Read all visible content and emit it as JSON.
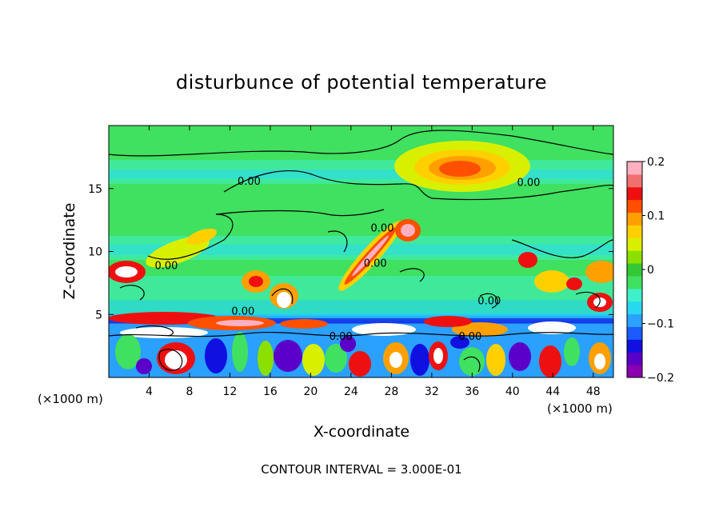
{
  "chart_data": {
    "type": "heatmap",
    "title": "disturbunce of potential temperature",
    "xlabel": "X-coordinate",
    "ylabel": "Z-coordinate",
    "x_unit_left": "(×1000 m)",
    "x_unit_right": "(×1000 m)",
    "footer": "CONTOUR INTERVAL = 3.000E-01",
    "xlim": [
      0,
      50
    ],
    "ylim": [
      0,
      20
    ],
    "x_ticks": [
      4,
      8,
      12,
      16,
      20,
      24,
      28,
      32,
      36,
      40,
      44,
      48
    ],
    "y_ticks": [
      5,
      10,
      15
    ],
    "colorbar": {
      "range": [
        -0.2,
        0.2
      ],
      "tick_values": [
        0.2,
        0.1,
        0,
        -0.1,
        -0.2
      ],
      "tick_labels": [
        "0.2",
        "0.1",
        "0",
        "−0.1",
        "−0.2"
      ],
      "colors": [
        "#8b00b0",
        "#5a00c8",
        "#1010e0",
        "#1a5cff",
        "#2aa0ff",
        "#28d8f0",
        "#40f0c8",
        "#40e060",
        "#34c834",
        "#8ce000",
        "#d8f000",
        "#ffd000",
        "#ffa000",
        "#ff5000",
        "#ee1010",
        "#f07070",
        "#ffb0c0"
      ]
    },
    "contour_labels": [
      {
        "text": "0.00",
        "x": 13.9,
        "z": 15.3
      },
      {
        "text": "0.00",
        "x": 5.7,
        "z": 8.6
      },
      {
        "text": "0.00",
        "x": 27.1,
        "z": 11.6
      },
      {
        "text": "0.00",
        "x": 26.4,
        "z": 8.8
      },
      {
        "text": "0.00",
        "x": 41.6,
        "z": 15.2
      },
      {
        "text": "0.00",
        "x": 13.3,
        "z": 5.0
      },
      {
        "text": "0.00",
        "x": 23.0,
        "z": 3.0
      },
      {
        "text": "0.00",
        "x": 35.8,
        "z": 3.0
      },
      {
        "text": "0.00",
        "x": 37.7,
        "z": 5.8
      }
    ]
  }
}
